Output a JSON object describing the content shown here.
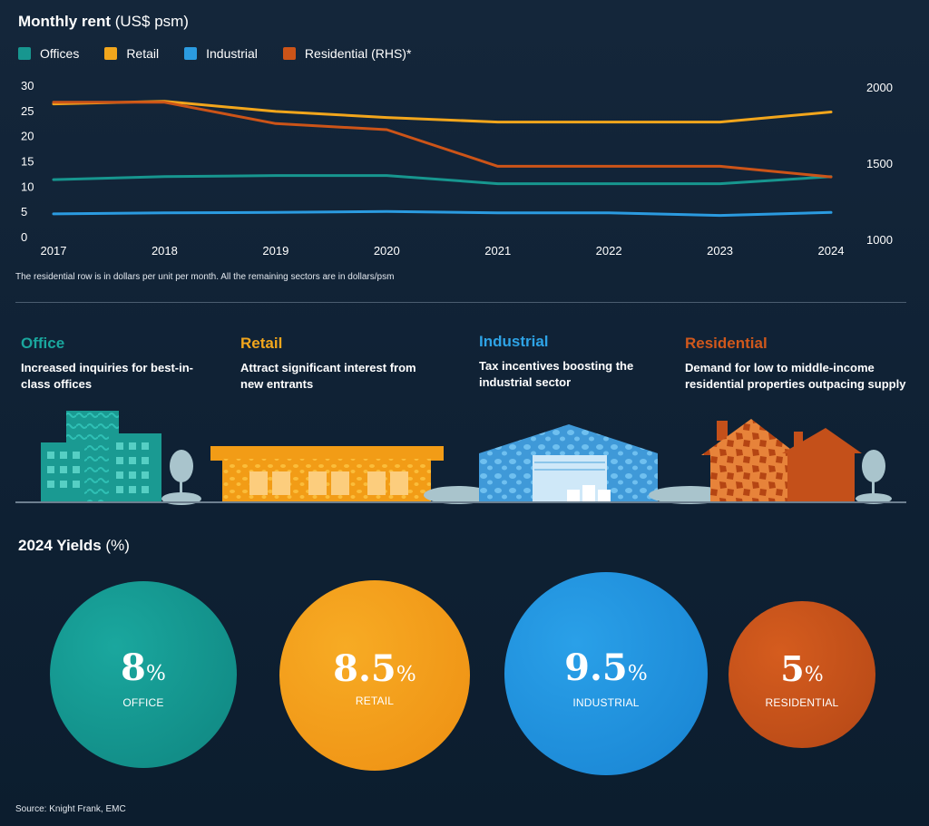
{
  "header": {
    "title_bold": "Monthly rent",
    "title_unit": "(US$ psm)"
  },
  "legend": [
    {
      "label": "Offices",
      "color": "#17968f"
    },
    {
      "label": "Retail",
      "color": "#f2a61c"
    },
    {
      "label": "Industrial",
      "color": "#2b9be0"
    },
    {
      "label": "Residential (RHS)*",
      "color": "#cc5418"
    }
  ],
  "chart_data": {
    "type": "line",
    "title": "Monthly rent (US$ psm)",
    "x": [
      "2017",
      "2018",
      "2019",
      "2020",
      "2021",
      "2022",
      "2023",
      "2024"
    ],
    "y_left_ticks": [
      "30",
      "25",
      "20",
      "15",
      "10",
      "5",
      "0"
    ],
    "y_right_ticks": [
      "2000",
      "1500",
      "1000"
    ],
    "ylim_left": [
      0,
      30
    ],
    "ylim_right": [
      1000,
      2000
    ],
    "legend_position": "top-left",
    "grid": false,
    "series": [
      {
        "name": "Offices",
        "axis": "left",
        "color": "#17968f",
        "values": [
          11.3,
          11.9,
          12.1,
          12.1,
          10.5,
          10.5,
          10.5,
          11.9
        ]
      },
      {
        "name": "Retail",
        "axis": "left",
        "color": "#f2a61c",
        "values": [
          26.3,
          26.8,
          24.8,
          23.6,
          22.7,
          22.7,
          22.7,
          24.7
        ]
      },
      {
        "name": "Industrial",
        "axis": "left",
        "color": "#2b9be0",
        "values": [
          4.5,
          4.7,
          4.8,
          5.0,
          4.7,
          4.7,
          4.2,
          4.8
        ]
      },
      {
        "name": "Residential (RHS)*",
        "axis": "right",
        "color": "#cc5418",
        "values": [
          1900,
          1900,
          1760,
          1720,
          1480,
          1480,
          1480,
          1410
        ]
      }
    ]
  },
  "footnote": "The residential row is in dollars per unit per month. All the remaining sectors are in dollars/psm",
  "sectors": [
    {
      "title": "Office",
      "color": "#1aa79e",
      "desc1": "Increased inquiries for best-in-",
      "desc2": "class offices"
    },
    {
      "title": "Retail",
      "color": "#f2a61c",
      "desc1": "Attract significant interest  from",
      "desc2": "new entrants"
    },
    {
      "title": "Industrial",
      "color": "#2ea3e6",
      "desc1": "Tax incentives boosting the",
      "desc2": "industrial sector"
    },
    {
      "title": "Residential",
      "color": "#d0581c",
      "desc1": "Demand for low to middle-income",
      "desc2": "residential properties outpacing supply"
    }
  ],
  "yields": {
    "title_bold": "2024 Yields",
    "title_unit": "(%)",
    "items": [
      {
        "value": "8",
        "pct": "%",
        "label": "OFFICE",
        "color": "#14968f"
      },
      {
        "value": "8.5",
        "pct": "%",
        "label": "RETAIL",
        "color": "#f39c16"
      },
      {
        "value": "9.5",
        "pct": "%",
        "label": "INDUSTRIAL",
        "color": "#1f8fdc"
      },
      {
        "value": "5",
        "pct": "%",
        "label": "RESIDENTIAL",
        "color": "#c4501a"
      }
    ]
  },
  "source": "Source: Knight Frank, EMC"
}
